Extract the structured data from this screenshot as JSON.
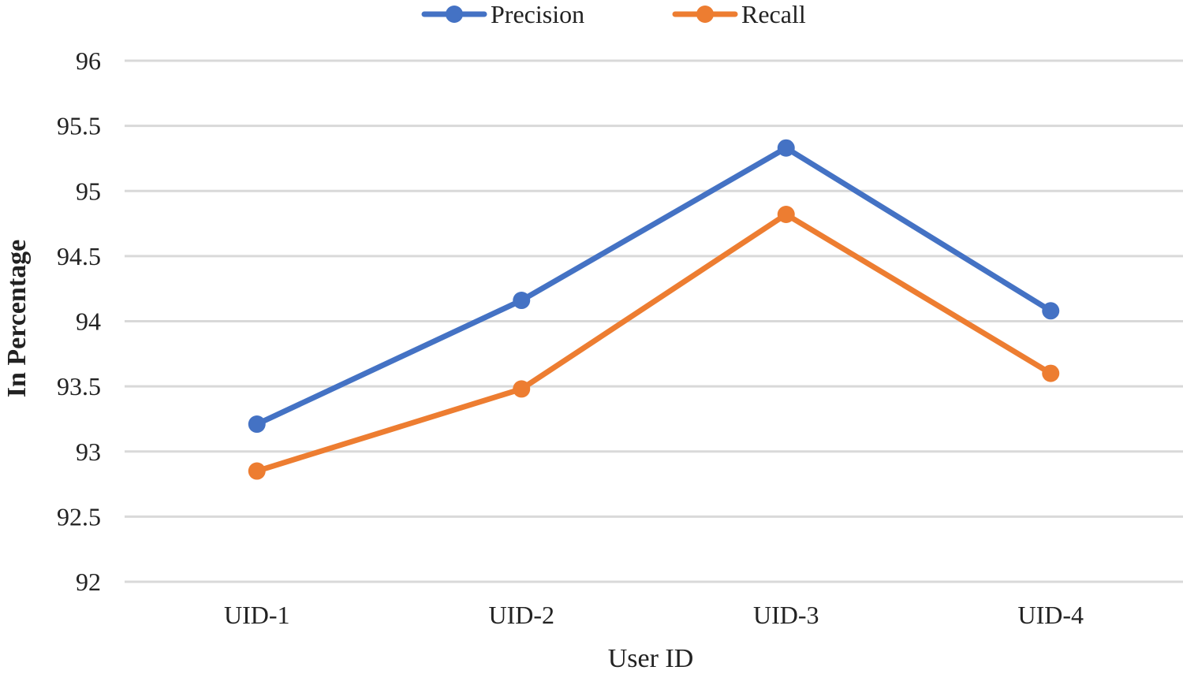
{
  "chart_data": {
    "type": "line",
    "title": "",
    "xlabel": "User ID",
    "ylabel": "In Percentage",
    "categories": [
      "UID-1",
      "UID-2",
      "UID-3",
      "UID-4"
    ],
    "ylim": [
      92,
      96
    ],
    "yticks": [
      92,
      92.5,
      93,
      93.5,
      94,
      94.5,
      95,
      95.5,
      96
    ],
    "ytick_labels": [
      "92",
      "92.5",
      "93",
      "93.5",
      "94",
      "94.5",
      "95",
      "95.5",
      "96"
    ],
    "grid": true,
    "legend_position": "top-center",
    "series": [
      {
        "name": "Precision",
        "color": "#4472c4",
        "values": [
          93.21,
          94.16,
          95.33,
          94.08
        ]
      },
      {
        "name": "Recall",
        "color": "#ed7d31",
        "values": [
          92.85,
          93.48,
          94.82,
          93.6
        ]
      }
    ]
  }
}
